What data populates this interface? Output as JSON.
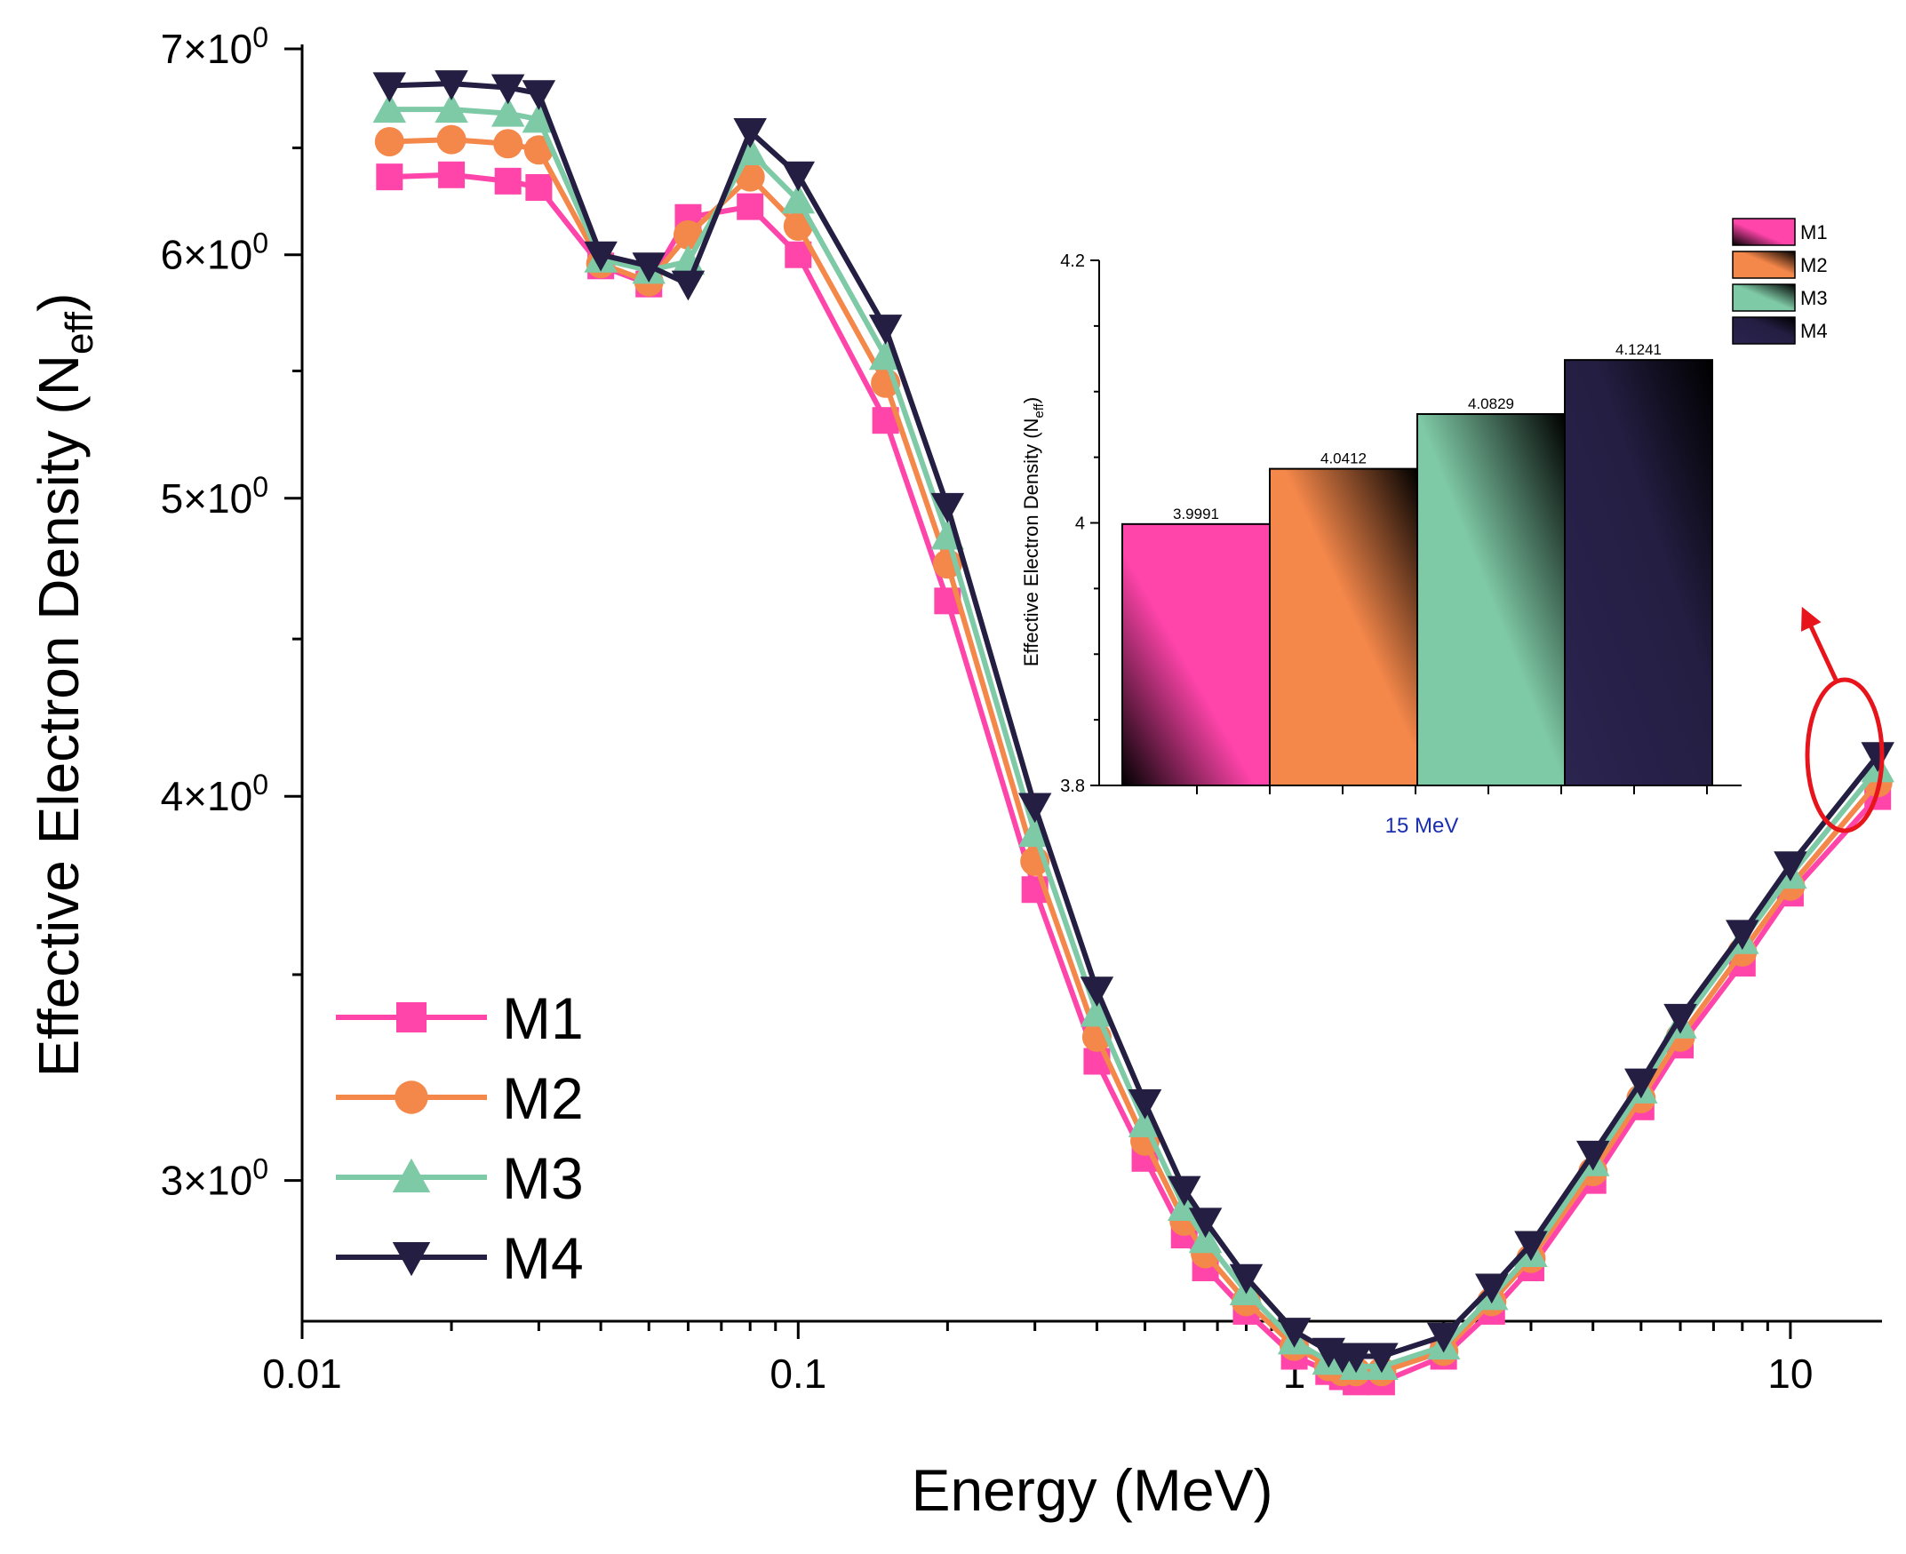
{
  "chart_data": [
    {
      "type": "line",
      "xscale": "log",
      "yscale": "log",
      "xlabel": "Energy (MeV)",
      "ylabel": {
        "main": "Effective Electron Density (N",
        "sub": "eff",
        "close": ")"
      },
      "xlim": [
        0.01,
        15
      ],
      "ylim": [
        2.7,
        7.0
      ],
      "xticks": [
        {
          "value": 0.01,
          "label": "0.01"
        },
        {
          "value": 0.1,
          "label": "0.1"
        },
        {
          "value": 1,
          "label": "1"
        },
        {
          "value": 10,
          "label": "10"
        }
      ],
      "yticks": [
        {
          "value": 3,
          "label": "3×10",
          "exp": "0"
        },
        {
          "value": 4,
          "label": "4×10",
          "exp": "0"
        },
        {
          "value": 5,
          "label": "5×10",
          "exp": "0"
        },
        {
          "value": 6,
          "label": "6×10",
          "exp": "0"
        },
        {
          "value": 7,
          "label": "7×10",
          "exp": "0"
        }
      ],
      "x": [
        0.015,
        0.02,
        0.026,
        0.03,
        0.04,
        0.05,
        0.06,
        0.08,
        0.1,
        0.15,
        0.2,
        0.3,
        0.4,
        0.5,
        0.6,
        0.662,
        0.8,
        1.0,
        1.173,
        1.25,
        1.332,
        1.5,
        2.0,
        2.5,
        3.0,
        4.0,
        5.0,
        6.0,
        8.0,
        10.0,
        15.0
      ],
      "series": [
        {
          "name": "M1",
          "color": "#ff44aa",
          "marker": "square",
          "values": [
            6.36,
            6.37,
            6.34,
            6.31,
            5.95,
            5.87,
            6.17,
            6.22,
            6.0,
            5.3,
            4.63,
            3.73,
            3.28,
            3.05,
            2.88,
            2.81,
            2.72,
            2.63,
            2.6,
            2.59,
            2.58,
            2.58,
            2.63,
            2.72,
            2.81,
            3.0,
            3.17,
            3.32,
            3.53,
            3.72,
            3.9991
          ]
        },
        {
          "name": "M2",
          "color": "#f4874a",
          "marker": "circle",
          "values": [
            6.53,
            6.54,
            6.52,
            6.49,
            5.96,
            5.88,
            6.09,
            6.36,
            6.13,
            5.45,
            4.76,
            3.81,
            3.34,
            3.09,
            2.91,
            2.84,
            2.74,
            2.65,
            2.61,
            2.6,
            2.6,
            2.6,
            2.64,
            2.74,
            2.83,
            3.02,
            3.19,
            3.34,
            3.56,
            3.74,
            4.0412
          ]
        },
        {
          "name": "M3",
          "color": "#7fcaa6",
          "marker": "triangle-up",
          "values": [
            6.69,
            6.69,
            6.67,
            6.64,
            5.98,
            5.93,
            5.97,
            6.48,
            6.25,
            5.56,
            4.86,
            3.89,
            3.4,
            3.13,
            2.94,
            2.87,
            2.76,
            2.66,
            2.62,
            2.62,
            2.61,
            2.61,
            2.65,
            2.75,
            2.84,
            3.04,
            3.21,
            3.37,
            3.59,
            3.77,
            4.0829
          ]
        },
        {
          "name": "M4",
          "color": "#241e42",
          "marker": "triangle-down",
          "values": [
            6.81,
            6.82,
            6.8,
            6.77,
            6.0,
            5.95,
            5.87,
            6.58,
            6.37,
            5.68,
            4.97,
            3.97,
            3.46,
            3.18,
            2.98,
            2.91,
            2.79,
            2.68,
            2.64,
            2.63,
            2.63,
            2.63,
            2.67,
            2.77,
            2.86,
            3.06,
            3.23,
            3.39,
            3.61,
            3.8,
            4.1241
          ]
        }
      ],
      "legend": {
        "position": "bottom-left",
        "entries": [
          "M1",
          "M2",
          "M3",
          "M4"
        ]
      }
    },
    {
      "type": "bar",
      "title": "inset",
      "categories": [
        "15 MeV"
      ],
      "xlabel": "15 MeV",
      "ylabel": {
        "main": "Effective Electron Density (N",
        "sub": "eff",
        "close": ")"
      },
      "ylim": [
        3.8,
        4.2
      ],
      "yticks": [
        {
          "value": 3.8,
          "label": "3.8"
        },
        {
          "value": 4.0,
          "label": "4"
        },
        {
          "value": 4.2,
          "label": "4.2"
        }
      ],
      "series": [
        {
          "name": "M1",
          "color": "#ff44aa",
          "values": [
            3.9991
          ],
          "label": "3.9991"
        },
        {
          "name": "M2",
          "color": "#f4874a",
          "values": [
            4.0412
          ],
          "label": "4.0412"
        },
        {
          "name": "M3",
          "color": "#7fcaa6",
          "values": [
            4.0829
          ],
          "label": "4.0829"
        },
        {
          "name": "M4",
          "color": "#241e42",
          "values": [
            4.1241
          ],
          "label": "4.1241"
        }
      ],
      "legend": {
        "position": "top-right",
        "entries": [
          "M1",
          "M2",
          "M3",
          "M4"
        ]
      },
      "xlabel_color": "#1a2fb0"
    }
  ],
  "annotation": {
    "highlight": "15 MeV data points circled with arrow to inset",
    "color": "#e8141c"
  }
}
